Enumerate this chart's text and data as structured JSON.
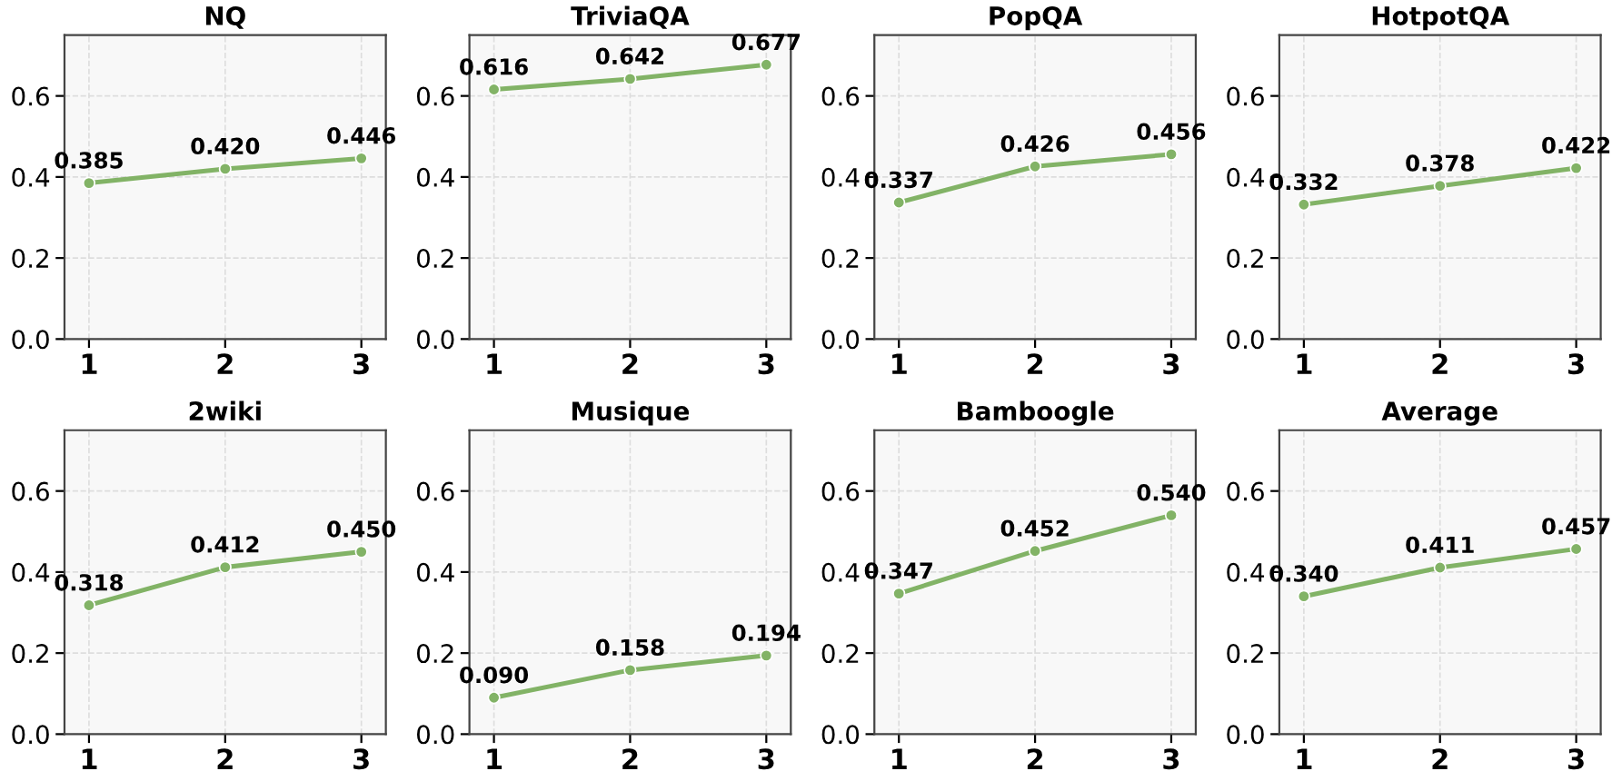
{
  "chart_data": [
    {
      "type": "line",
      "title": "NQ",
      "x": [
        1,
        2,
        3
      ],
      "values": [
        0.385,
        0.42,
        0.446
      ],
      "value_labels": [
        "0.385",
        "0.420",
        "0.446"
      ],
      "color": "#82b366",
      "marker": "circle",
      "xlim": [
        0.82,
        3.18
      ],
      "ylim": [
        0,
        0.75
      ],
      "xticks": [
        1,
        2,
        3
      ],
      "yticks": [
        {
          "value": 0,
          "label": "0.0"
        },
        {
          "value": 0.2,
          "label": "0.2"
        },
        {
          "value": 0.4,
          "label": "0.4"
        },
        {
          "value": 0.6,
          "label": "0.6"
        }
      ],
      "grid": true
    },
    {
      "type": "line",
      "title": "TriviaQA",
      "x": [
        1,
        2,
        3
      ],
      "values": [
        0.616,
        0.642,
        0.677
      ],
      "value_labels": [
        "0.616",
        "0.642",
        "0.677"
      ],
      "color": "#82b366",
      "marker": "circle",
      "xlim": [
        0.82,
        3.18
      ],
      "ylim": [
        0,
        0.75
      ],
      "xticks": [
        1,
        2,
        3
      ],
      "yticks": [
        {
          "value": 0,
          "label": "0.0"
        },
        {
          "value": 0.2,
          "label": "0.2"
        },
        {
          "value": 0.4,
          "label": "0.4"
        },
        {
          "value": 0.6,
          "label": "0.6"
        }
      ],
      "grid": true
    },
    {
      "type": "line",
      "title": "PopQA",
      "x": [
        1,
        2,
        3
      ],
      "values": [
        0.337,
        0.426,
        0.456
      ],
      "value_labels": [
        "0.337",
        "0.426",
        "0.456"
      ],
      "color": "#82b366",
      "marker": "circle",
      "xlim": [
        0.82,
        3.18
      ],
      "ylim": [
        0,
        0.75
      ],
      "xticks": [
        1,
        2,
        3
      ],
      "yticks": [
        {
          "value": 0,
          "label": "0.0"
        },
        {
          "value": 0.2,
          "label": "0.2"
        },
        {
          "value": 0.4,
          "label": "0.4"
        },
        {
          "value": 0.6,
          "label": "0.6"
        }
      ],
      "grid": true
    },
    {
      "type": "line",
      "title": "HotpotQA",
      "x": [
        1,
        2,
        3
      ],
      "values": [
        0.332,
        0.378,
        0.422
      ],
      "value_labels": [
        "0.332",
        "0.378",
        "0.422"
      ],
      "color": "#82b366",
      "marker": "circle",
      "xlim": [
        0.82,
        3.18
      ],
      "ylim": [
        0,
        0.75
      ],
      "xticks": [
        1,
        2,
        3
      ],
      "yticks": [
        {
          "value": 0,
          "label": "0.0"
        },
        {
          "value": 0.2,
          "label": "0.2"
        },
        {
          "value": 0.4,
          "label": "0.4"
        },
        {
          "value": 0.6,
          "label": "0.6"
        }
      ],
      "grid": true
    },
    {
      "type": "line",
      "title": "2wiki",
      "x": [
        1,
        2,
        3
      ],
      "values": [
        0.318,
        0.412,
        0.45
      ],
      "value_labels": [
        "0.318",
        "0.412",
        "0.450"
      ],
      "color": "#82b366",
      "marker": "circle",
      "xlim": [
        0.82,
        3.18
      ],
      "ylim": [
        0,
        0.75
      ],
      "xticks": [
        1,
        2,
        3
      ],
      "yticks": [
        {
          "value": 0,
          "label": "0.0"
        },
        {
          "value": 0.2,
          "label": "0.2"
        },
        {
          "value": 0.4,
          "label": "0.4"
        },
        {
          "value": 0.6,
          "label": "0.6"
        }
      ],
      "grid": true
    },
    {
      "type": "line",
      "title": "Musique",
      "x": [
        1,
        2,
        3
      ],
      "values": [
        0.09,
        0.158,
        0.194
      ],
      "value_labels": [
        "0.090",
        "0.158",
        "0.194"
      ],
      "color": "#82b366",
      "marker": "circle",
      "xlim": [
        0.82,
        3.18
      ],
      "ylim": [
        0,
        0.75
      ],
      "xticks": [
        1,
        2,
        3
      ],
      "yticks": [
        {
          "value": 0,
          "label": "0.0"
        },
        {
          "value": 0.2,
          "label": "0.2"
        },
        {
          "value": 0.4,
          "label": "0.4"
        },
        {
          "value": 0.6,
          "label": "0.6"
        }
      ],
      "grid": true
    },
    {
      "type": "line",
      "title": "Bamboogle",
      "x": [
        1,
        2,
        3
      ],
      "values": [
        0.347,
        0.452,
        0.54
      ],
      "value_labels": [
        "0.347",
        "0.452",
        "0.540"
      ],
      "color": "#82b366",
      "marker": "circle",
      "xlim": [
        0.82,
        3.18
      ],
      "ylim": [
        0,
        0.75
      ],
      "xticks": [
        1,
        2,
        3
      ],
      "yticks": [
        {
          "value": 0,
          "label": "0.0"
        },
        {
          "value": 0.2,
          "label": "0.2"
        },
        {
          "value": 0.4,
          "label": "0.4"
        },
        {
          "value": 0.6,
          "label": "0.6"
        }
      ],
      "grid": true
    },
    {
      "type": "line",
      "title": "Average",
      "x": [
        1,
        2,
        3
      ],
      "values": [
        0.34,
        0.411,
        0.457
      ],
      "value_labels": [
        "0.340",
        "0.411",
        "0.457"
      ],
      "color": "#82b366",
      "marker": "circle",
      "xlim": [
        0.82,
        3.18
      ],
      "ylim": [
        0,
        0.75
      ],
      "xticks": [
        1,
        2,
        3
      ],
      "yticks": [
        {
          "value": 0,
          "label": "0.0"
        },
        {
          "value": 0.2,
          "label": "0.2"
        },
        {
          "value": 0.4,
          "label": "0.4"
        },
        {
          "value": 0.6,
          "label": "0.6"
        }
      ],
      "grid": true
    }
  ]
}
